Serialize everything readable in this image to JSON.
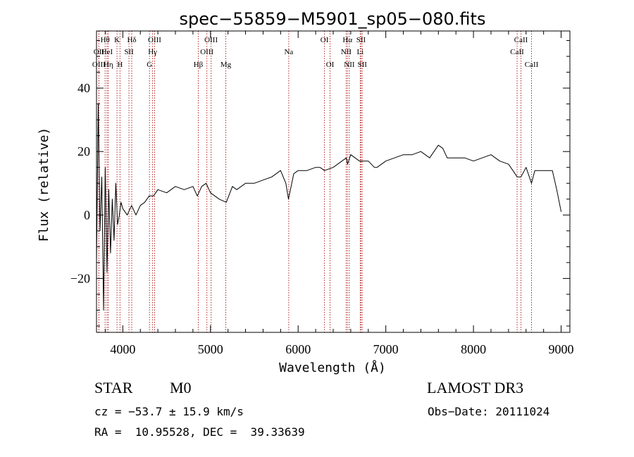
{
  "chart_data": {
    "type": "line",
    "title": "spec−55859−M5901_sp05−080.fits",
    "xlabel": "Wavelength (Å)",
    "ylabel": "Flux (relative)",
    "xlim": [
      3700,
      9100
    ],
    "ylim": [
      -37,
      58
    ],
    "xticks": [
      4000,
      5000,
      6000,
      7000,
      8000,
      9000
    ],
    "yticks": [
      -20,
      0,
      20,
      40
    ],
    "ytick_labels": [
      "−20",
      "0",
      "20",
      "40"
    ],
    "grid": false,
    "line_color": "#000000",
    "marker_color": "#b22222",
    "series": [
      {
        "name": "flux",
        "x": [
          3700,
          3720,
          3740,
          3760,
          3780,
          3800,
          3820,
          3840,
          3860,
          3880,
          3900,
          3920,
          3940,
          3960,
          3980,
          4000,
          4050,
          4100,
          4150,
          4200,
          4250,
          4300,
          4350,
          4400,
          4500,
          4600,
          4700,
          4800,
          4850,
          4900,
          4950,
          5000,
          5100,
          5180,
          5250,
          5300,
          5400,
          5500,
          5600,
          5700,
          5800,
          5860,
          5890,
          5950,
          6000,
          6100,
          6200,
          6250,
          6300,
          6400,
          6500,
          6550,
          6563,
          6600,
          6650,
          6700,
          6800,
          6870,
          6900,
          7000,
          7100,
          7200,
          7300,
          7400,
          7500,
          7550,
          7600,
          7650,
          7700,
          7800,
          7900,
          8000,
          8100,
          8200,
          8300,
          8400,
          8450,
          8498,
          8542,
          8600,
          8662,
          8700,
          8800,
          8900,
          8950,
          9000
        ],
        "y": [
          -15,
          35,
          -5,
          12,
          -30,
          15,
          -18,
          8,
          -12,
          5,
          -8,
          10,
          -3,
          0,
          4,
          2,
          0,
          3,
          0,
          3,
          4,
          6,
          6,
          8,
          7,
          9,
          8,
          9,
          6,
          9,
          10,
          7,
          5,
          4,
          9,
          8,
          10,
          10,
          11,
          12,
          14,
          10,
          5,
          13,
          14,
          14,
          15,
          15,
          14,
          15,
          17,
          18,
          16,
          19,
          18,
          17,
          17,
          15,
          15,
          17,
          18,
          19,
          19,
          20,
          18,
          20,
          22,
          21,
          18,
          18,
          18,
          17,
          18,
          19,
          17,
          16,
          14,
          12,
          12,
          15,
          10,
          14,
          14,
          14,
          8,
          1
        ]
      }
    ],
    "spectral_lines": [
      {
        "label": "Hθ",
        "x": 3798,
        "row": 0
      },
      {
        "label": "OII",
        "x": 3727,
        "row": 1
      },
      {
        "label": "OIII",
        "x": 3727,
        "row": 2
      },
      {
        "label": "HeI",
        "x": 3820,
        "row": 1
      },
      {
        "label": "Hη",
        "x": 3835,
        "row": 2
      },
      {
        "label": "K",
        "x": 3934,
        "row": 0
      },
      {
        "label": "H",
        "x": 3968,
        "row": 2
      },
      {
        "label": "SII",
        "x": 4070,
        "row": 1
      },
      {
        "label": "Hδ",
        "x": 4102,
        "row": 0
      },
      {
        "label": "OIII",
        "x": 4363,
        "row": 0
      },
      {
        "label": "Hγ",
        "x": 4340,
        "row": 1
      },
      {
        "label": "G",
        "x": 4304,
        "row": 2
      },
      {
        "label": "Hβ",
        "x": 4861,
        "row": 2
      },
      {
        "label": "OIII",
        "x": 5007,
        "row": 0
      },
      {
        "label": "OIII",
        "x": 4959,
        "row": 1
      },
      {
        "label": "Mg",
        "x": 5175,
        "row": 2
      },
      {
        "label": "Na",
        "x": 5893,
        "row": 1
      },
      {
        "label": "OI",
        "x": 6300,
        "row": 0
      },
      {
        "label": "OI",
        "x": 6364,
        "row": 2
      },
      {
        "label": "Hα",
        "x": 6563,
        "row": 0
      },
      {
        "label": "SII",
        "x": 6717,
        "row": 0
      },
      {
        "label": "NII",
        "x": 6548,
        "row": 1
      },
      {
        "label": "Li",
        "x": 6708,
        "row": 1
      },
      {
        "label": "NII",
        "x": 6584,
        "row": 2
      },
      {
        "label": "SII",
        "x": 6731,
        "row": 2
      },
      {
        "label": "CaII",
        "x": 8542,
        "row": 0
      },
      {
        "label": "CaII",
        "x": 8498,
        "row": 1
      },
      {
        "label": "CaII",
        "x": 8662,
        "row": 2
      }
    ]
  },
  "info": {
    "object_class": "STAR",
    "subclass": "M0",
    "redshift": "cz = −53.7 ± 15.9 km/s",
    "coords": "RA =  10.95528, DEC =  39.33639",
    "survey": "LAMOST DR3",
    "obs_date": "Obs−Date: 20111024"
  }
}
